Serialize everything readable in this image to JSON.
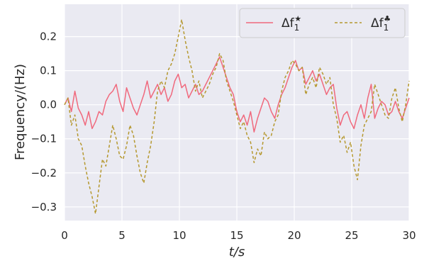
{
  "chart_data": {
    "type": "line",
    "xlabel": "t/s",
    "ylabel": "Frequency/(Hz)",
    "xlim": [
      0,
      30
    ],
    "ylim": [
      -0.34,
      0.295
    ],
    "xticks": [
      0,
      5,
      10,
      15,
      20,
      25,
      30
    ],
    "yticks": [
      -0.3,
      -0.2,
      -0.1,
      0.0,
      0.1,
      0.2
    ],
    "ytick_labels": [
      "−0.3",
      "−0.2",
      "−0.1",
      "0.0",
      "0.1",
      "0.2"
    ],
    "grid": true,
    "legend_position": "top-right",
    "background": "#eaeaf2",
    "series": [
      {
        "name": "Δf₁★",
        "name_base": "Δf",
        "name_sub": "1",
        "name_sup": "★",
        "color": "#f0697d",
        "style": "solid",
        "x": [
          0,
          0.3,
          0.6,
          0.9,
          1.2,
          1.5,
          1.8,
          2.1,
          2.4,
          2.7,
          3.0,
          3.3,
          3.6,
          3.9,
          4.2,
          4.5,
          4.8,
          5.1,
          5.4,
          5.7,
          6.0,
          6.3,
          6.6,
          6.9,
          7.2,
          7.5,
          7.8,
          8.1,
          8.4,
          8.7,
          9.0,
          9.3,
          9.6,
          9.9,
          10.2,
          10.5,
          10.8,
          11.1,
          11.4,
          11.7,
          12.0,
          12.3,
          12.6,
          12.9,
          13.2,
          13.5,
          13.8,
          14.1,
          14.4,
          14.7,
          15.0,
          15.3,
          15.6,
          15.9,
          16.2,
          16.5,
          16.8,
          17.1,
          17.4,
          17.7,
          18.0,
          18.3,
          18.6,
          18.9,
          19.2,
          19.5,
          19.8,
          20.1,
          20.4,
          20.7,
          21.0,
          21.3,
          21.6,
          21.9,
          22.2,
          22.5,
          22.8,
          23.1,
          23.4,
          23.7,
          24.0,
          24.3,
          24.6,
          24.9,
          25.2,
          25.5,
          25.8,
          26.1,
          26.4,
          26.7,
          27.0,
          27.3,
          27.6,
          27.9,
          28.2,
          28.5,
          28.8,
          29.1,
          29.4,
          29.7,
          30.0
        ],
        "values": [
          0.0,
          0.02,
          -0.02,
          0.04,
          -0.01,
          -0.03,
          -0.06,
          -0.02,
          -0.07,
          -0.05,
          -0.02,
          -0.03,
          0.01,
          0.03,
          0.04,
          0.06,
          0.01,
          -0.02,
          0.05,
          0.02,
          -0.01,
          -0.03,
          0.0,
          0.03,
          0.07,
          0.02,
          0.04,
          0.06,
          0.03,
          0.05,
          0.01,
          0.03,
          0.07,
          0.09,
          0.05,
          0.06,
          0.02,
          0.04,
          0.06,
          0.03,
          0.04,
          0.06,
          0.08,
          0.1,
          0.12,
          0.14,
          0.11,
          0.08,
          0.05,
          0.03,
          -0.02,
          -0.05,
          -0.03,
          -0.06,
          -0.02,
          -0.08,
          -0.04,
          -0.01,
          0.02,
          0.01,
          -0.02,
          -0.04,
          0.0,
          0.03,
          0.05,
          0.08,
          0.11,
          0.13,
          0.1,
          0.11,
          0.06,
          0.08,
          0.1,
          0.07,
          0.09,
          0.06,
          0.03,
          0.05,
          0.06,
          -0.01,
          -0.06,
          -0.03,
          -0.02,
          -0.05,
          -0.07,
          -0.03,
          0.0,
          -0.04,
          0.02,
          0.06,
          -0.04,
          -0.01,
          0.01,
          0.0,
          -0.03,
          -0.02,
          0.01,
          -0.02,
          -0.04,
          -0.01,
          0.02
        ]
      },
      {
        "name": "Δf₁♣",
        "name_base": "Δf",
        "name_sub": "1",
        "name_sup": "♣",
        "color": "#b5982f",
        "style": "dashed",
        "x": [
          0,
          0.3,
          0.6,
          0.9,
          1.2,
          1.5,
          1.8,
          2.1,
          2.4,
          2.7,
          3.0,
          3.3,
          3.6,
          3.9,
          4.2,
          4.5,
          4.8,
          5.1,
          5.4,
          5.7,
          6.0,
          6.3,
          6.6,
          6.9,
          7.2,
          7.5,
          7.8,
          8.1,
          8.4,
          8.7,
          9.0,
          9.3,
          9.6,
          9.9,
          10.2,
          10.5,
          10.8,
          11.1,
          11.4,
          11.7,
          12.0,
          12.3,
          12.6,
          12.9,
          13.2,
          13.5,
          13.8,
          14.1,
          14.4,
          14.7,
          15.0,
          15.3,
          15.6,
          15.9,
          16.2,
          16.5,
          16.8,
          17.1,
          17.4,
          17.7,
          18.0,
          18.3,
          18.6,
          18.9,
          19.2,
          19.5,
          19.8,
          20.1,
          20.4,
          20.7,
          21.0,
          21.3,
          21.6,
          21.9,
          22.2,
          22.5,
          22.8,
          23.1,
          23.4,
          23.7,
          24.0,
          24.3,
          24.6,
          24.9,
          25.2,
          25.5,
          25.8,
          26.1,
          26.4,
          26.7,
          27.0,
          27.3,
          27.6,
          27.9,
          28.2,
          28.5,
          28.8,
          29.1,
          29.4,
          29.7,
          30.0
        ],
        "values": [
          0.0,
          0.02,
          -0.06,
          -0.03,
          -0.1,
          -0.12,
          -0.18,
          -0.23,
          -0.27,
          -0.32,
          -0.24,
          -0.16,
          -0.18,
          -0.12,
          -0.06,
          -0.1,
          -0.15,
          -0.16,
          -0.12,
          -0.06,
          -0.09,
          -0.15,
          -0.2,
          -0.23,
          -0.17,
          -0.12,
          -0.05,
          0.04,
          0.07,
          0.05,
          0.1,
          0.12,
          0.15,
          0.2,
          0.25,
          0.19,
          0.14,
          0.1,
          0.04,
          0.07,
          0.02,
          0.04,
          0.06,
          0.09,
          0.11,
          0.15,
          0.13,
          0.07,
          0.04,
          0.01,
          -0.03,
          -0.07,
          -0.05,
          -0.09,
          -0.11,
          -0.17,
          -0.13,
          -0.15,
          -0.08,
          -0.1,
          -0.09,
          -0.05,
          -0.03,
          0.04,
          0.08,
          0.1,
          0.13,
          0.12,
          0.1,
          0.11,
          0.03,
          0.06,
          0.08,
          0.05,
          0.11,
          0.09,
          0.06,
          0.08,
          0.0,
          -0.04,
          -0.11,
          -0.09,
          -0.14,
          -0.11,
          -0.18,
          -0.22,
          -0.12,
          -0.06,
          -0.04,
          -0.02,
          0.06,
          0.03,
          0.0,
          -0.03,
          -0.04,
          0.02,
          0.05,
          -0.01,
          -0.05,
          0.0,
          0.07
        ]
      }
    ]
  }
}
